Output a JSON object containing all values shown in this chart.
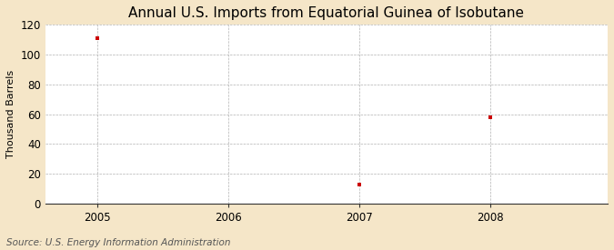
{
  "title": "Annual U.S. Imports from Equatorial Guinea of Isobutane",
  "ylabel": "Thousand Barrels",
  "source": "Source: U.S. Energy Information Administration",
  "years": [
    2005,
    2007,
    2008
  ],
  "values": [
    111,
    13,
    58
  ],
  "xlim": [
    2004.6,
    2008.9
  ],
  "ylim": [
    0,
    120
  ],
  "yticks": [
    0,
    20,
    40,
    60,
    80,
    100,
    120
  ],
  "xticks": [
    2005,
    2006,
    2007,
    2008
  ],
  "marker_color": "#cc0000",
  "marker_size": 3,
  "fig_bg_color": "#f5e6c8",
  "plot_bg_color": "#ffffff",
  "grid_color": "#aaaaaa",
  "title_fontsize": 11,
  "label_fontsize": 8,
  "tick_fontsize": 8.5,
  "source_fontsize": 7.5
}
